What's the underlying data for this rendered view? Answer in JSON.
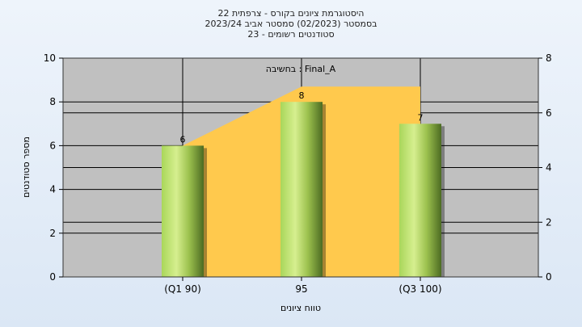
{
  "titles": {
    "line1": "היסטוגרמת ציונים בקורס - צרפתית 22",
    "line2": "בסמסטר  (02/2023)  סמסטר אביב 2023/24",
    "line3": "סטודנטים רשומים - 23"
  },
  "chart_data": {
    "type": "bar",
    "categories": [
      "(Q1 90)",
      "95",
      "(Q3 100)"
    ],
    "series": [
      {
        "values": [
          6,
          8,
          7
        ],
        "color": "#7fa33a"
      }
    ],
    "area_series": {
      "label": "Final_A : בחשיבה",
      "color": "#ffc94d",
      "values": [
        6,
        8.7,
        8.7
      ]
    },
    "data_labels": [
      "6",
      "8",
      "7"
    ],
    "xlabel": "טווח ציונים",
    "ylabel": "מספר סטודנטים",
    "ylim": [
      0,
      10
    ],
    "yticks": [
      "0",
      "2",
      "4",
      "6",
      "8",
      "10"
    ],
    "y2lim": [
      0,
      8
    ],
    "y2ticks": [
      "0",
      "2",
      "4",
      "6",
      "8"
    ],
    "grid": true,
    "plot_background": "#c0c0c0"
  }
}
